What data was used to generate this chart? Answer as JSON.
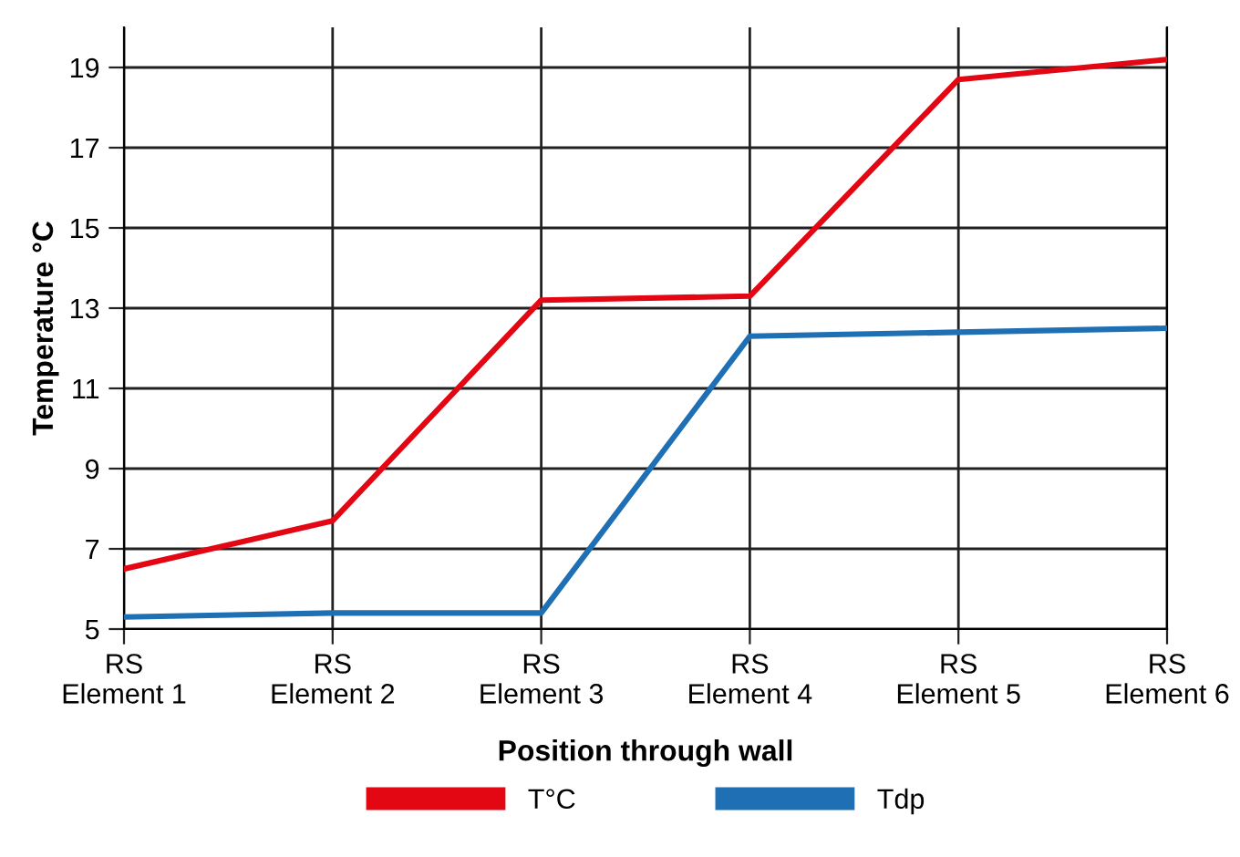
{
  "chart_data": {
    "type": "line",
    "xlabel": "Position through wall",
    "ylabel": "Temperature °C",
    "categories": [
      "RS\nElement 1",
      "RS\nElement 2",
      "RS\nElement 3",
      "RS\nElement 4",
      "RS\nElement 5",
      "RS\nElement 6"
    ],
    "series": [
      {
        "name": "T°C",
        "color": "#e30613",
        "values": [
          6.5,
          7.7,
          13.2,
          13.3,
          18.7,
          19.2
        ]
      },
      {
        "name": "Tdp",
        "color": "#1f6fb5",
        "values": [
          5.3,
          5.4,
          5.4,
          12.3,
          12.4,
          12.5
        ]
      }
    ],
    "ylim": [
      5,
      20
    ],
    "yticks": [
      5,
      7,
      9,
      11,
      13,
      15,
      17,
      19
    ],
    "grid": true,
    "legend": "bottom",
    "marker": "none",
    "line_style": "solid"
  }
}
